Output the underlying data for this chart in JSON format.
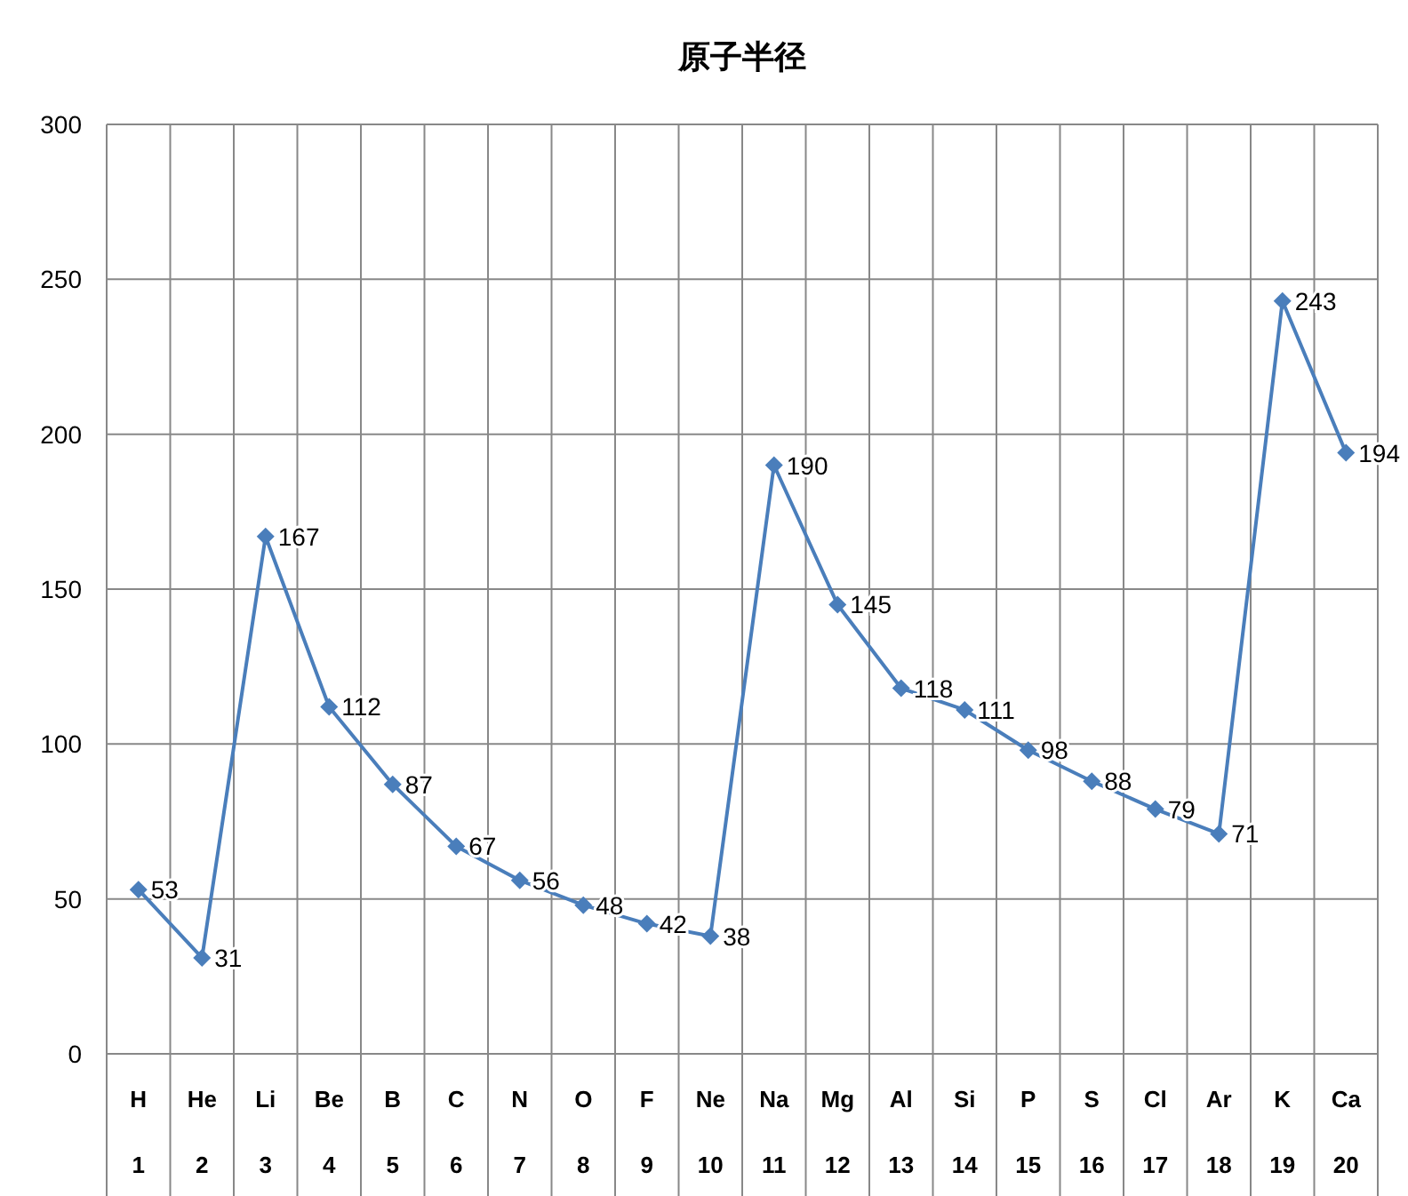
{
  "chart_data": {
    "type": "line",
    "title": "原子半径",
    "categories": [
      "H\n1",
      "He\n2",
      "Li\n3",
      "Be\n4",
      "B\n5",
      "C\n6",
      "N\n7",
      "O\n8",
      "F\n9",
      "Ne\n10",
      "Na\n11",
      "Mg\n12",
      "Al\n13",
      "Si\n14",
      "P\n15",
      "S\n16",
      "Cl\n17",
      "Ar\n18",
      "K\n19",
      "Ca\n20"
    ],
    "series": [
      {
        "color": "#4a7ebb",
        "values": [
          53,
          31,
          167,
          112,
          87,
          67,
          56,
          48,
          42,
          38,
          190,
          145,
          118,
          111,
          98,
          88,
          79,
          71,
          243,
          194
        ]
      }
    ],
    "ylim": [
      0,
      300
    ],
    "yticks": [
      0,
      50,
      100,
      150,
      200,
      250,
      300
    ],
    "grid": true,
    "marker": "diamond",
    "line_style": "solid",
    "data_labels": true
  }
}
